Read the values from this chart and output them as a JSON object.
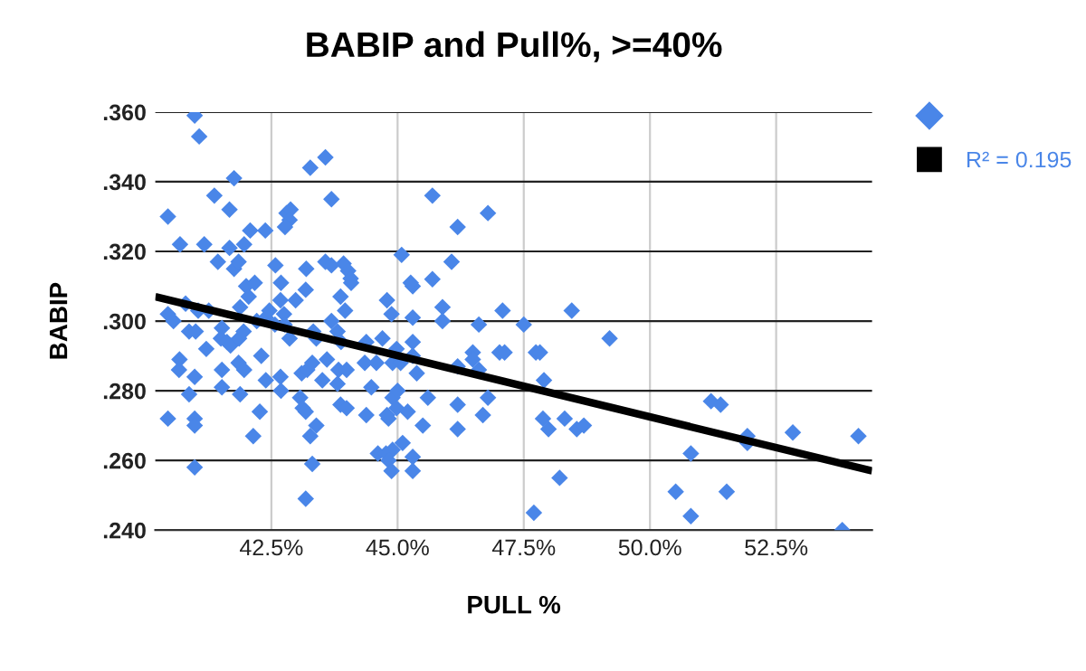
{
  "chart_data": {
    "type": "scatter",
    "title": "BABIP and Pull%, >=40%",
    "xlabel": "PULL %",
    "ylabel": "BABIP",
    "xlim": [
      40.2,
      54.4
    ],
    "ylim": [
      0.24,
      0.36
    ],
    "xticks": [
      {
        "value": 42.5,
        "label": "42.5%"
      },
      {
        "value": 45,
        "label": "45.0%"
      },
      {
        "value": 47.5,
        "label": "47.5%"
      },
      {
        "value": 50,
        "label": "50.0%"
      },
      {
        "value": 52.5,
        "label": "52.5%"
      }
    ],
    "yticks": [
      {
        "value": 0.24,
        "label": ".240"
      },
      {
        "value": 0.26,
        "label": ".260"
      },
      {
        "value": 0.28,
        "label": ".280"
      },
      {
        "value": 0.3,
        "label": ".300"
      },
      {
        "value": 0.32,
        "label": ".320"
      },
      {
        "value": 0.34,
        "label": ".340"
      },
      {
        "value": 0.36,
        "label": ".360"
      }
    ],
    "grid": true,
    "legend": "right",
    "series": [
      {
        "color": "#4a86e8",
        "marker": "diamond",
        "x": [
          40.98,
          41.07,
          40.45,
          40.69,
          41.17,
          41.37,
          41.67,
          41.76,
          41.44,
          41.67,
          41.96,
          42.08,
          42.38,
          41.76,
          41.85,
          42.0,
          42.17,
          42.05,
          41.88,
          40.8,
          40.45,
          40.56,
          41.05,
          41.26,
          40.87,
          41.0,
          41.21,
          41.52,
          41.5,
          41.62,
          41.69,
          41.86,
          41.95,
          42.21,
          42.39,
          42.46,
          42.57,
          40.68,
          40.67,
          40.98,
          41.52,
          41.52,
          40.87,
          41.85,
          41.96,
          41.88,
          42.3,
          42.39,
          42.27,
          42.14,
          40.45,
          40.98,
          40.98,
          40.98,
          42.58,
          42.69,
          42.68,
          42.75,
          42.76,
          42.86,
          42.98,
          43.18,
          42.8,
          42.88,
          42.86,
          42.77,
          43.27,
          43.57,
          43.69,
          43.19,
          43.57,
          43.69,
          42.68,
          42.69,
          43.07,
          43.12,
          43.18,
          43.39,
          43.27,
          43.31,
          43.18,
          43.1,
          43.21,
          43.31,
          43.51,
          43.6,
          43.33,
          43.39,
          43.69,
          43.81,
          43.88,
          43.83,
          43.81,
          43.87,
          43.93,
          44.02,
          44.07,
          44.08,
          43.87,
          43.96,
          43.99,
          43.99,
          44.38,
          44.7,
          44.35,
          44.58,
          44.79,
          44.88,
          44.98,
          44.9,
          45.06,
          45.3,
          45.3,
          45.38,
          45.3,
          45.3,
          45.26,
          45.08,
          45.69,
          45.69,
          46.19,
          46.79,
          46.07,
          45.89,
          45.89,
          46.61,
          47.08,
          46.19,
          46.49,
          46.49,
          46.61,
          47.02,
          47.12,
          47.5,
          47.74,
          47.82,
          47.9,
          48.45,
          44.48,
          44.38,
          44.79,
          44.82,
          44.9,
          45.0,
          44.98,
          45.2,
          45.6,
          45.5,
          46.19,
          46.19,
          46.79,
          46.69,
          47.88,
          47.99,
          48.31,
          48.55,
          44.61,
          44.77,
          44.9,
          44.82,
          45.1,
          44.88,
          45.3,
          45.3,
          48.21,
          47.7,
          49.2,
          48.69,
          50.81,
          50.51,
          50.81,
          51.21,
          51.4,
          51.52,
          51.93,
          51.93,
          52.83,
          54.13,
          53.81
        ],
        "values": [
          0.359,
          0.353,
          0.33,
          0.322,
          0.322,
          0.336,
          0.332,
          0.341,
          0.317,
          0.321,
          0.322,
          0.326,
          0.326,
          0.315,
          0.317,
          0.31,
          0.311,
          0.307,
          0.304,
          0.305,
          0.302,
          0.3,
          0.303,
          0.303,
          0.297,
          0.297,
          0.292,
          0.298,
          0.295,
          0.294,
          0.293,
          0.295,
          0.297,
          0.3,
          0.301,
          0.303,
          0.299,
          0.289,
          0.286,
          0.284,
          0.286,
          0.281,
          0.279,
          0.288,
          0.286,
          0.279,
          0.29,
          0.283,
          0.274,
          0.267,
          0.272,
          0.272,
          0.27,
          0.258,
          0.316,
          0.311,
          0.306,
          0.302,
          0.299,
          0.295,
          0.306,
          0.309,
          0.331,
          0.332,
          0.329,
          0.327,
          0.344,
          0.347,
          0.335,
          0.315,
          0.317,
          0.316,
          0.284,
          0.28,
          0.278,
          0.275,
          0.274,
          0.27,
          0.267,
          0.259,
          0.249,
          0.285,
          0.286,
          0.288,
          0.283,
          0.289,
          0.297,
          0.295,
          0.3,
          0.297,
          0.294,
          0.286,
          0.282,
          0.276,
          0.3165,
          0.3144,
          0.3122,
          0.311,
          0.307,
          0.303,
          0.286,
          0.275,
          0.294,
          0.295,
          0.288,
          0.288,
          0.306,
          0.302,
          0.292,
          0.288,
          0.288,
          0.294,
          0.29,
          0.285,
          0.301,
          0.31,
          0.311,
          0.319,
          0.312,
          0.336,
          0.327,
          0.331,
          0.317,
          0.304,
          0.3,
          0.299,
          0.303,
          0.287,
          0.291,
          0.289,
          0.286,
          0.291,
          0.291,
          0.299,
          0.291,
          0.291,
          0.283,
          0.303,
          0.281,
          0.273,
          0.273,
          0.272,
          0.278,
          0.28,
          0.275,
          0.274,
          0.278,
          0.27,
          0.276,
          0.269,
          0.278,
          0.273,
          0.272,
          0.269,
          0.272,
          0.269,
          0.262,
          0.262,
          0.263,
          0.26,
          0.265,
          0.257,
          0.261,
          0.257,
          0.255,
          0.245,
          0.295,
          0.27,
          0.262,
          0.251,
          0.244,
          0.277,
          0.276,
          0.251,
          0.267,
          0.265,
          0.268,
          0.267,
          0.24
        ]
      },
      {
        "type": "line",
        "name": "R² = 0.195",
        "color": "#000000",
        "x": [
          40.2,
          54.4
        ],
        "values": [
          0.307,
          0.257
        ]
      }
    ]
  }
}
